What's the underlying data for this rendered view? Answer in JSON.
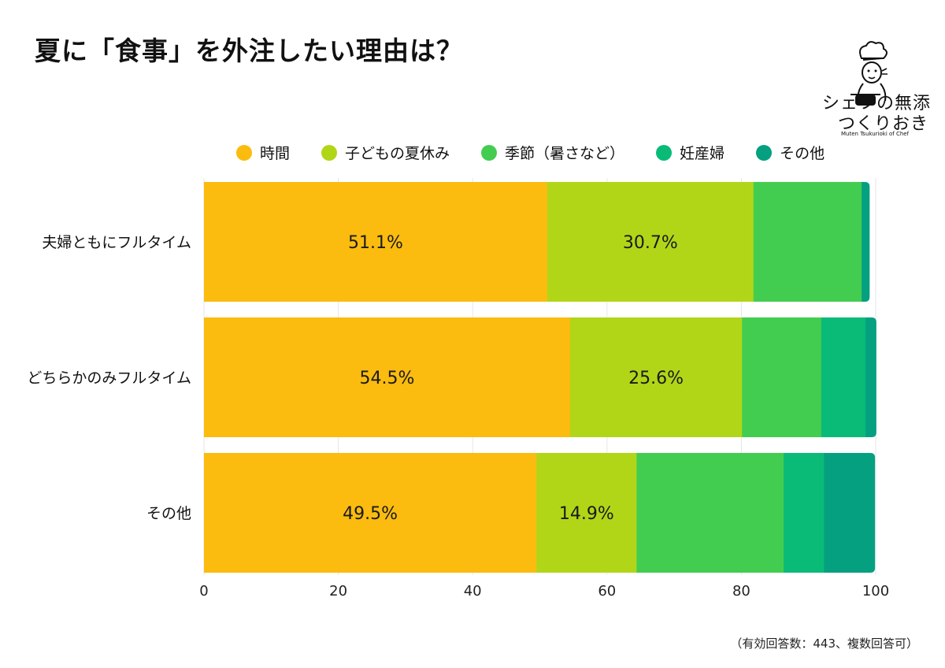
{
  "title": "夏に「食事」を外注したい理由は？",
  "logo": {
    "line1": "シェフの無添",
    "line2": "つくりおき",
    "line3": "Muten Tsukurioki of Chef"
  },
  "note": "（有効回答数：443、複数回答可）",
  "chart_data": {
    "type": "bar",
    "orientation": "horizontal",
    "stacked": true,
    "categories": [
      "夫婦ともにフルタイム",
      "どちらかのみフルタイム",
      "その他"
    ],
    "series": [
      {
        "name": "時間",
        "color": "#fbbc0f",
        "values": [
          51.1,
          54.5,
          49.5
        ],
        "labels": [
          "51.1%",
          "54.5%",
          "49.5%"
        ]
      },
      {
        "name": "子どもの夏休み",
        "color": "#b1d618",
        "values": [
          30.7,
          25.6,
          14.9
        ],
        "labels": [
          "30.7%",
          "25.6%",
          "14.9%"
        ]
      },
      {
        "name": "季節（暑さなど）",
        "color": "#43cd50",
        "values": [
          16.1,
          11.8,
          21.9
        ],
        "labels": [
          "",
          "",
          ""
        ]
      },
      {
        "name": "妊産婦",
        "color": "#0abb78",
        "values": [
          0,
          6.6,
          6.0
        ],
        "labels": [
          "",
          "",
          ""
        ]
      },
      {
        "name": "その他",
        "color": "#04a07f",
        "values": [
          1.2,
          1.6,
          7.6
        ],
        "labels": [
          "",
          "",
          ""
        ]
      }
    ],
    "xlim": [
      0,
      100
    ],
    "xticks": [
      "0",
      "20",
      "40",
      "60",
      "80",
      "100"
    ],
    "grid": true,
    "legend": "top"
  }
}
